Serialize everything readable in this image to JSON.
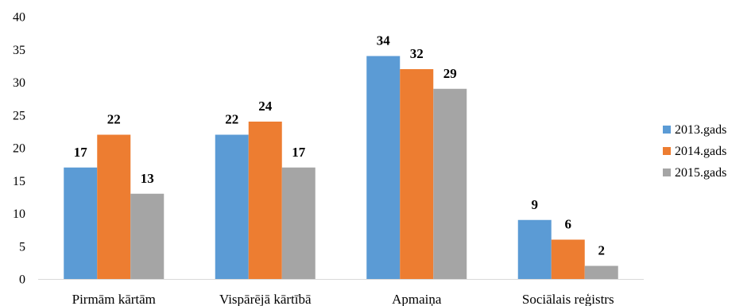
{
  "chart_data": {
    "type": "bar",
    "title": "",
    "xlabel": "",
    "ylabel": "",
    "categories": [
      "Pirmām kārtām",
      "Vispārējā kārtībā",
      "Apmaiņa",
      "Sociālais reģistrs"
    ],
    "series": [
      {
        "name": "2013.gads",
        "values": [
          17,
          22,
          34,
          9
        ],
        "color": "#5B9BD5"
      },
      {
        "name": "2014.gads",
        "values": [
          22,
          24,
          32,
          6
        ],
        "color": "#ED7D31"
      },
      {
        "name": "2015.gads",
        "values": [
          13,
          17,
          29,
          2
        ],
        "color": "#A5A5A5"
      }
    ],
    "ylim": [
      0,
      40
    ],
    "yticks": [
      0,
      5,
      10,
      15,
      20,
      25,
      30,
      35,
      40
    ],
    "grid": false,
    "legend_position": "right",
    "data_labels": true
  }
}
